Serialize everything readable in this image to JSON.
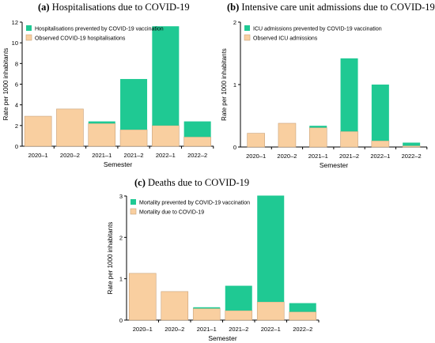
{
  "colors": {
    "prevented": "#1fc993",
    "observed": "#f9cfa0",
    "observed_stroke": "#c9a27a",
    "axis": "#000000"
  },
  "chart_data": [
    {
      "id": "a",
      "type": "bar",
      "stacked": true,
      "tag": "(a)",
      "title": "Hospitalisations due to COVID-19",
      "xlabel": "Semester",
      "ylabel": "Rate per 1000 inhabitants",
      "ylim": [
        0,
        12
      ],
      "yticks": [
        "0",
        "2",
        "4",
        "6",
        "8",
        "10",
        "12"
      ],
      "ytick_values": [
        0,
        2,
        4,
        6,
        8,
        10,
        12
      ],
      "categories": [
        "2020–1",
        "2020–2",
        "2021–1",
        "2021–2",
        "2022–1",
        "2022–2"
      ],
      "legend": "top-left",
      "series": [
        {
          "name": "Hospitalisations prevented by COVID-19 vaccination",
          "key": "prevented",
          "values": [
            0,
            0,
            0.2,
            4.9,
            9.6,
            1.5
          ]
        },
        {
          "name": "Observed COVID-19 hospitalisations",
          "key": "observed",
          "values": [
            2.9,
            3.6,
            2.2,
            1.6,
            2.0,
            0.9
          ]
        }
      ]
    },
    {
      "id": "b",
      "type": "bar",
      "stacked": true,
      "tag": "(b)",
      "title": "Intensive care unit admissions due to COVID-19",
      "xlabel": "Semester",
      "ylabel": "Rate per 1000 inhabitants",
      "ylim": [
        0,
        2
      ],
      "yticks": [
        "0",
        "1",
        "2"
      ],
      "ytick_values": [
        0,
        1,
        2
      ],
      "categories": [
        "2020–1",
        "2020–2",
        "2021–1",
        "2021–2",
        "2022–1",
        "2022–2"
      ],
      "legend": "top-left",
      "series": [
        {
          "name": "ICU admissions prevented by COVID-19 vaccination",
          "key": "prevented",
          "values": [
            0,
            0,
            0.03,
            1.17,
            0.9,
            0.05
          ]
        },
        {
          "name": "Observed ICU admissions",
          "key": "observed",
          "values": [
            0.22,
            0.38,
            0.31,
            0.25,
            0.1,
            0.02
          ]
        }
      ]
    },
    {
      "id": "c",
      "type": "bar",
      "stacked": true,
      "tag": "(c)",
      "title": "Deaths due to COVID-19",
      "xlabel": "Semester",
      "ylabel": "Rate per 1000 inhabitants",
      "ylim": [
        0,
        3
      ],
      "yticks": [
        "0",
        "1",
        "2",
        "3"
      ],
      "ytick_values": [
        0,
        1,
        2,
        3
      ],
      "categories": [
        "2020–1",
        "2020–2",
        "2021–1",
        "2021–2",
        "2022–1",
        "2022–2"
      ],
      "legend": "top-left",
      "series": [
        {
          "name": "Mortality prevented by COVID-19 vaccination",
          "key": "prevented",
          "values": [
            0,
            0,
            0.03,
            0.6,
            2.57,
            0.21
          ]
        },
        {
          "name": "Mortality due to COVID-19",
          "key": "observed",
          "values": [
            1.13,
            0.69,
            0.28,
            0.23,
            0.44,
            0.2
          ]
        }
      ]
    }
  ]
}
